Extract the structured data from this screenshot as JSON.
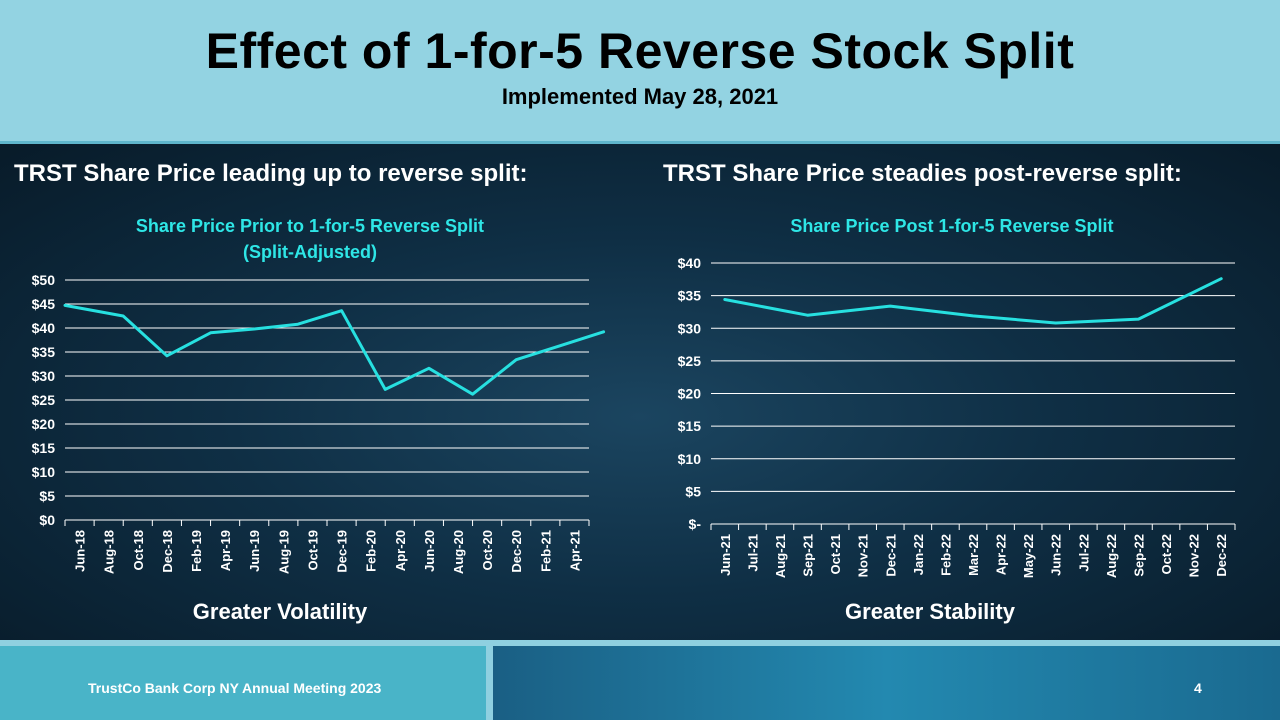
{
  "header": {
    "title": "Effect of 1-for-5 Reverse Stock Split",
    "subtitle": "Implemented May 28, 2021"
  },
  "left_section": {
    "heading": "TRST Share Price leading up to reverse split:",
    "caption": "Greater Volatility"
  },
  "right_section": {
    "heading": "TRST Share Price steadies post-reverse split:",
    "caption": "Greater Stability"
  },
  "footer": {
    "text": "TrustCo Bank Corp NY Annual Meeting 2023",
    "page": "4"
  },
  "colors": {
    "line": "#27e0e0",
    "chart_title": "#2ee6e6",
    "grid": "#ffffff",
    "text": "#ffffff"
  },
  "chart_data": [
    {
      "type": "line",
      "title": "Share Price Prior to 1-for-5 Reverse Split",
      "subtitle": "(Split-Adjusted)",
      "categories": [
        "Jun-18",
        "Aug-18",
        "Oct-18",
        "Dec-18",
        "Feb-19",
        "Apr-19",
        "Jun-19",
        "Aug-19",
        "Oct-19",
        "Dec-19",
        "Feb-20",
        "Apr-20",
        "Jun-20",
        "Aug-20",
        "Oct-20",
        "Dec-20",
        "Feb-21",
        "Apr-21"
      ],
      "series": [
        {
          "name": "TRST Share Price",
          "points": [
            [
              0,
              44.7
            ],
            [
              2,
              42.5
            ],
            [
              3.5,
              34.2
            ],
            [
              5,
              39.0
            ],
            [
              6.5,
              39.8
            ],
            [
              8,
              40.8
            ],
            [
              9.5,
              43.6
            ],
            [
              11,
              27.2
            ],
            [
              12.5,
              31.6
            ],
            [
              14,
              26.2
            ],
            [
              15.5,
              33.4
            ],
            [
              17,
              36.3
            ],
            [
              18.5,
              39.2
            ]
          ]
        }
      ],
      "yticks": [
        "$0",
        "$5",
        "$10",
        "$15",
        "$20",
        "$25",
        "$30",
        "$35",
        "$40",
        "$45",
        "$50"
      ],
      "ylim": [
        0,
        50
      ],
      "grid": true
    },
    {
      "type": "line",
      "title": "Share Price Post 1-for-5 Reverse Split",
      "categories": [
        "Jun-21",
        "Jul-21",
        "Aug-21",
        "Sep-21",
        "Oct-21",
        "Nov-21",
        "Dec-21",
        "Jan-22",
        "Feb-22",
        "Mar-22",
        "Apr-22",
        "May-22",
        "Jun-22",
        "Jul-22",
        "Aug-22",
        "Sep-22",
        "Oct-22",
        "Nov-22",
        "Dec-22"
      ],
      "series": [
        {
          "name": "TRST Share Price",
          "values": [
            34.4,
            null,
            null,
            32.0,
            null,
            null,
            33.4,
            null,
            null,
            31.9,
            null,
            null,
            30.8,
            null,
            null,
            31.4,
            null,
            null,
            37.6
          ]
        }
      ],
      "yticks": [
        "$-",
        "$5",
        "$10",
        "$15",
        "$20",
        "$25",
        "$30",
        "$35",
        "$40"
      ],
      "ylim": [
        0,
        40
      ],
      "grid": true
    }
  ]
}
